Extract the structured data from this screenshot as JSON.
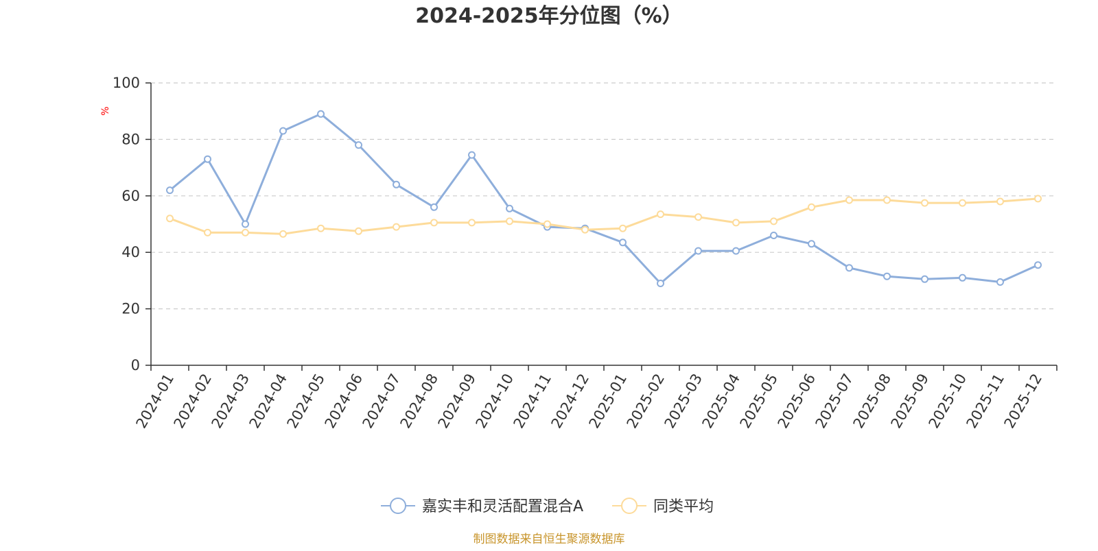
{
  "chart_data": {
    "type": "line",
    "title": "2024-2025年分位图（%）",
    "ylabel": "%",
    "xlabel": "",
    "ylim": [
      0,
      100
    ],
    "y_ticks": [
      0,
      20,
      40,
      60,
      80,
      100
    ],
    "grid": true,
    "legend_position": "bottom-center",
    "categories": [
      "2024-01",
      "2024-02",
      "2024-03",
      "2024-04",
      "2024-05",
      "2024-06",
      "2024-07",
      "2024-08",
      "2024-09",
      "2024-10",
      "2024-11",
      "2024-12",
      "2025-01",
      "2025-02",
      "2025-03",
      "2025-04",
      "2025-05",
      "2025-06",
      "2025-07",
      "2025-08",
      "2025-09",
      "2025-10",
      "2025-11",
      "2025-12"
    ],
    "series": [
      {
        "name": "嘉实丰和灵活配置混合A",
        "color": "#8eaedb",
        "values": [
          62,
          73,
          50,
          83,
          89,
          78,
          64,
          56,
          74.5,
          55.5,
          49,
          48.5,
          43.5,
          29,
          40.5,
          40.5,
          46,
          43,
          34.5,
          31.5,
          30.5,
          31,
          29.5,
          35.5
        ]
      },
      {
        "name": "同类平均",
        "color": "#fddb9a",
        "values": [
          52,
          47,
          47,
          46.5,
          48.5,
          47.5,
          49,
          50.5,
          50.5,
          51,
          50,
          48,
          48.5,
          53.5,
          52.5,
          50.5,
          51,
          56,
          58.5,
          58.5,
          57.5,
          57.5,
          58,
          59
        ]
      }
    ],
    "source": "制图数据来自恒生聚源数据库",
    "source_color": "#c8952c"
  }
}
